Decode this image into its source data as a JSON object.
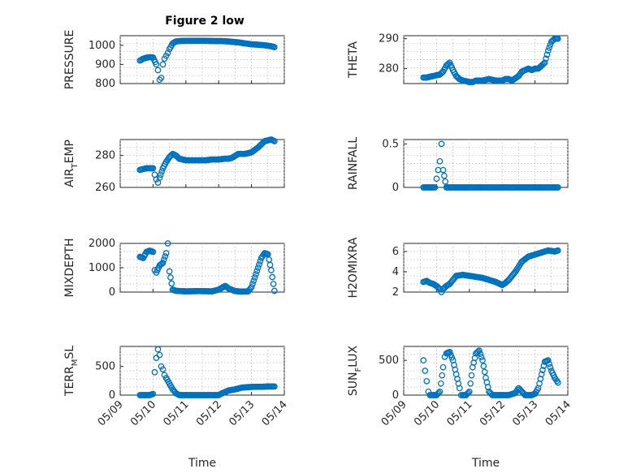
{
  "figure": {
    "title": "Figure 2 low",
    "marker_color": "#0072bd"
  },
  "chart_data": [
    {
      "type": "scatter",
      "ylabel": "PRESSURE",
      "ylim": [
        800,
        1050
      ],
      "yticks": [
        800,
        900,
        1000
      ],
      "xlim": [
        0,
        5
      ],
      "xticks": [],
      "xlabel": "",
      "series": [
        {
          "name": "",
          "x": [
            0.6,
            0.7,
            0.8,
            0.9,
            1.0,
            1.1,
            1.15,
            1.2,
            1.25,
            1.3,
            1.35,
            1.4,
            1.45,
            1.5,
            1.6,
            1.7,
            1.8,
            2.0,
            2.3,
            2.6,
            2.9,
            3.1,
            3.3,
            3.6,
            3.8,
            4.0,
            4.2,
            4.4,
            4.6,
            4.7
          ],
          "y": [
            920,
            930,
            935,
            938,
            936,
            900,
            870,
            820,
            830,
            900,
            930,
            945,
            960,
            980,
            1010,
            1020,
            1022,
            1023,
            1023,
            1023,
            1022,
            1022,
            1020,
            1015,
            1010,
            1005,
            1003,
            1000,
            995,
            990
          ]
        }
      ]
    },
    {
      "type": "scatter",
      "ylabel": "THETA",
      "ylim": [
        275,
        291
      ],
      "yticks": [
        280,
        290
      ],
      "xlim": [
        0,
        5
      ],
      "xticks": [],
      "xlabel": "",
      "series": [
        {
          "name": "",
          "x": [
            0.6,
            0.7,
            0.8,
            0.9,
            1.0,
            1.1,
            1.2,
            1.3,
            1.4,
            1.5,
            1.6,
            1.7,
            1.8,
            1.9,
            2.0,
            2.1,
            2.2,
            2.4,
            2.6,
            2.8,
            3.0,
            3.1,
            3.2,
            3.3,
            3.5,
            3.6,
            3.7,
            3.8,
            3.9,
            4.0,
            4.1,
            4.3,
            4.4,
            4.5,
            4.6,
            4.7
          ],
          "y": [
            277,
            277,
            277.3,
            277.5,
            277.8,
            278,
            279,
            281,
            282,
            279.5,
            277.5,
            276.5,
            276,
            275.8,
            275.5,
            275.5,
            276,
            276,
            276.5,
            276,
            276,
            276.5,
            276.5,
            276,
            277.5,
            279,
            279.5,
            280,
            279.5,
            280,
            280,
            282,
            286,
            289,
            290,
            290
          ]
        }
      ]
    },
    {
      "type": "scatter",
      "ylabel": "AIR_TEMP",
      "ylim": [
        260,
        290
      ],
      "yticks": [
        260,
        280
      ],
      "xlim": [
        0,
        5
      ],
      "xticks": [],
      "xlabel": "",
      "series": [
        {
          "name": "",
          "x": [
            0.6,
            0.7,
            0.8,
            0.9,
            1.0,
            1.05,
            1.1,
            1.15,
            1.2,
            1.3,
            1.4,
            1.5,
            1.6,
            1.7,
            1.8,
            2.0,
            2.2,
            2.4,
            2.6,
            2.8,
            3.0,
            3.2,
            3.3,
            3.4,
            3.6,
            3.8,
            4.0,
            4.2,
            4.4,
            4.6,
            4.7
          ],
          "y": [
            271,
            271.5,
            272,
            272,
            272,
            268,
            265,
            263,
            266,
            272,
            276,
            279,
            281,
            280,
            278,
            277,
            277,
            277,
            277,
            277.5,
            277.5,
            278,
            278,
            278.5,
            281,
            281,
            282,
            285,
            289,
            290,
            289
          ]
        }
      ]
    },
    {
      "type": "scatter",
      "ylabel": "RAINFALL",
      "ylim": [
        0,
        0.55
      ],
      "yticks": [
        0,
        0.5
      ],
      "xlim": [
        0,
        5
      ],
      "xticks": [],
      "xlabel": "",
      "series": [
        {
          "name": "",
          "x": [
            0.6,
            0.8,
            0.95,
            1.0,
            1.05,
            1.1,
            1.15,
            1.2,
            1.3,
            1.5,
            1.8,
            2.2,
            2.6,
            3.0,
            3.4,
            3.8,
            4.2,
            4.6,
            4.7
          ],
          "y": [
            0,
            0,
            0,
            0.1,
            0.2,
            0.3,
            0.5,
            0.2,
            0,
            0,
            0,
            0,
            0,
            0,
            0,
            0,
            0,
            0,
            0
          ]
        }
      ]
    },
    {
      "type": "scatter",
      "ylabel": "MIXDEPTH",
      "ylim": [
        0,
        2000
      ],
      "yticks": [
        0,
        1000,
        2000
      ],
      "xlim": [
        0,
        5
      ],
      "xticks": [],
      "xlabel": "",
      "series": [
        {
          "name": "",
          "x": [
            0.6,
            0.7,
            0.8,
            0.9,
            1.0,
            1.05,
            1.1,
            1.2,
            1.3,
            1.4,
            1.45,
            1.5,
            1.6,
            1.7,
            2.0,
            2.4,
            2.8,
            3.0,
            3.2,
            3.3,
            3.5,
            3.7,
            3.9,
            4.0,
            4.1,
            4.2,
            4.3,
            4.4,
            4.5,
            4.6,
            4.7
          ],
          "y": [
            1450,
            1400,
            1650,
            1700,
            1650,
            900,
            800,
            1100,
            1200,
            1600,
            2000,
            850,
            100,
            50,
            30,
            40,
            30,
            100,
            250,
            150,
            40,
            20,
            30,
            200,
            600,
            1000,
            1400,
            1600,
            1550,
            900,
            50
          ]
        }
      ]
    },
    {
      "type": "scatter",
      "ylabel": "H2OMIXRA",
      "ylim": [
        2,
        6.8
      ],
      "yticks": [
        2,
        4,
        6
      ],
      "xlim": [
        0,
        5
      ],
      "xticks": [],
      "xlabel": "",
      "series": [
        {
          "name": "",
          "x": [
            0.6,
            0.7,
            0.8,
            0.9,
            1.0,
            1.1,
            1.15,
            1.2,
            1.3,
            1.4,
            1.5,
            1.6,
            1.8,
            2.0,
            2.2,
            2.4,
            2.6,
            2.8,
            3.0,
            3.1,
            3.2,
            3.4,
            3.6,
            3.8,
            4.0,
            4.2,
            4.4,
            4.6,
            4.7
          ],
          "y": [
            3,
            3.1,
            2.9,
            2.8,
            2.6,
            2.3,
            2.0,
            2.3,
            2.6,
            2.8,
            3.2,
            3.6,
            3.7,
            3.6,
            3.5,
            3.4,
            3.2,
            3.0,
            2.7,
            2.9,
            3.2,
            4.0,
            5.0,
            5.5,
            5.7,
            5.9,
            6.1,
            6.0,
            6.1
          ]
        }
      ]
    },
    {
      "type": "scatter",
      "ylabel": "TERR_MSL",
      "ylim": [
        0,
        850
      ],
      "yticks": [
        0,
        500
      ],
      "xlim": [
        0,
        5
      ],
      "xticks": [
        "05/09",
        "05/10",
        "05/11",
        "05/12",
        "05/13",
        "05/14"
      ],
      "xlabel": "Time",
      "series": [
        {
          "name": "",
          "x": [
            0.6,
            0.7,
            0.8,
            0.9,
            1.0,
            1.05,
            1.1,
            1.15,
            1.2,
            1.25,
            1.3,
            1.35,
            1.4,
            1.5,
            1.6,
            1.7,
            1.8,
            2.0,
            2.2,
            2.4,
            2.6,
            2.8,
            3.0,
            3.1,
            3.3,
            3.5,
            3.7,
            3.9,
            4.1,
            4.3,
            4.5,
            4.7
          ],
          "y": [
            0,
            0,
            0,
            0,
            20,
            400,
            650,
            800,
            700,
            500,
            450,
            350,
            300,
            200,
            100,
            30,
            0,
            0,
            0,
            0,
            0,
            0,
            0,
            30,
            80,
            100,
            130,
            140,
            145,
            145,
            150,
            150
          ]
        }
      ]
    },
    {
      "type": "scatter",
      "ylabel": "SUN_FLUX",
      "ylim": [
        0,
        700
      ],
      "yticks": [
        0,
        500
      ],
      "xlim": [
        0,
        5
      ],
      "xticks": [
        "05/09",
        "05/10",
        "05/11",
        "05/12",
        "05/13",
        "05/14"
      ],
      "xlabel": "Time",
      "series": [
        {
          "name": "",
          "x": [
            0.6,
            0.65,
            0.7,
            0.75,
            0.8,
            0.9,
            1.0,
            1.1,
            1.2,
            1.25,
            1.3,
            1.4,
            1.5,
            1.6,
            1.7,
            1.75,
            1.8,
            1.9,
            2.0,
            2.1,
            2.2,
            2.3,
            2.4,
            2.5,
            2.6,
            2.7,
            2.8,
            2.9,
            3.0,
            3.2,
            3.4,
            3.5,
            3.6,
            3.7,
            3.8,
            3.9,
            4.0,
            4.1,
            4.2,
            4.3,
            4.4,
            4.5,
            4.6,
            4.7
          ],
          "y": [
            500,
            350,
            200,
            50,
            0,
            0,
            0,
            50,
            400,
            550,
            600,
            620,
            500,
            300,
            100,
            0,
            0,
            0,
            50,
            400,
            600,
            640,
            500,
            250,
            50,
            0,
            0,
            0,
            0,
            0,
            30,
            100,
            50,
            0,
            0,
            0,
            20,
            100,
            300,
            480,
            500,
            350,
            250,
            180
          ]
        }
      ]
    }
  ]
}
